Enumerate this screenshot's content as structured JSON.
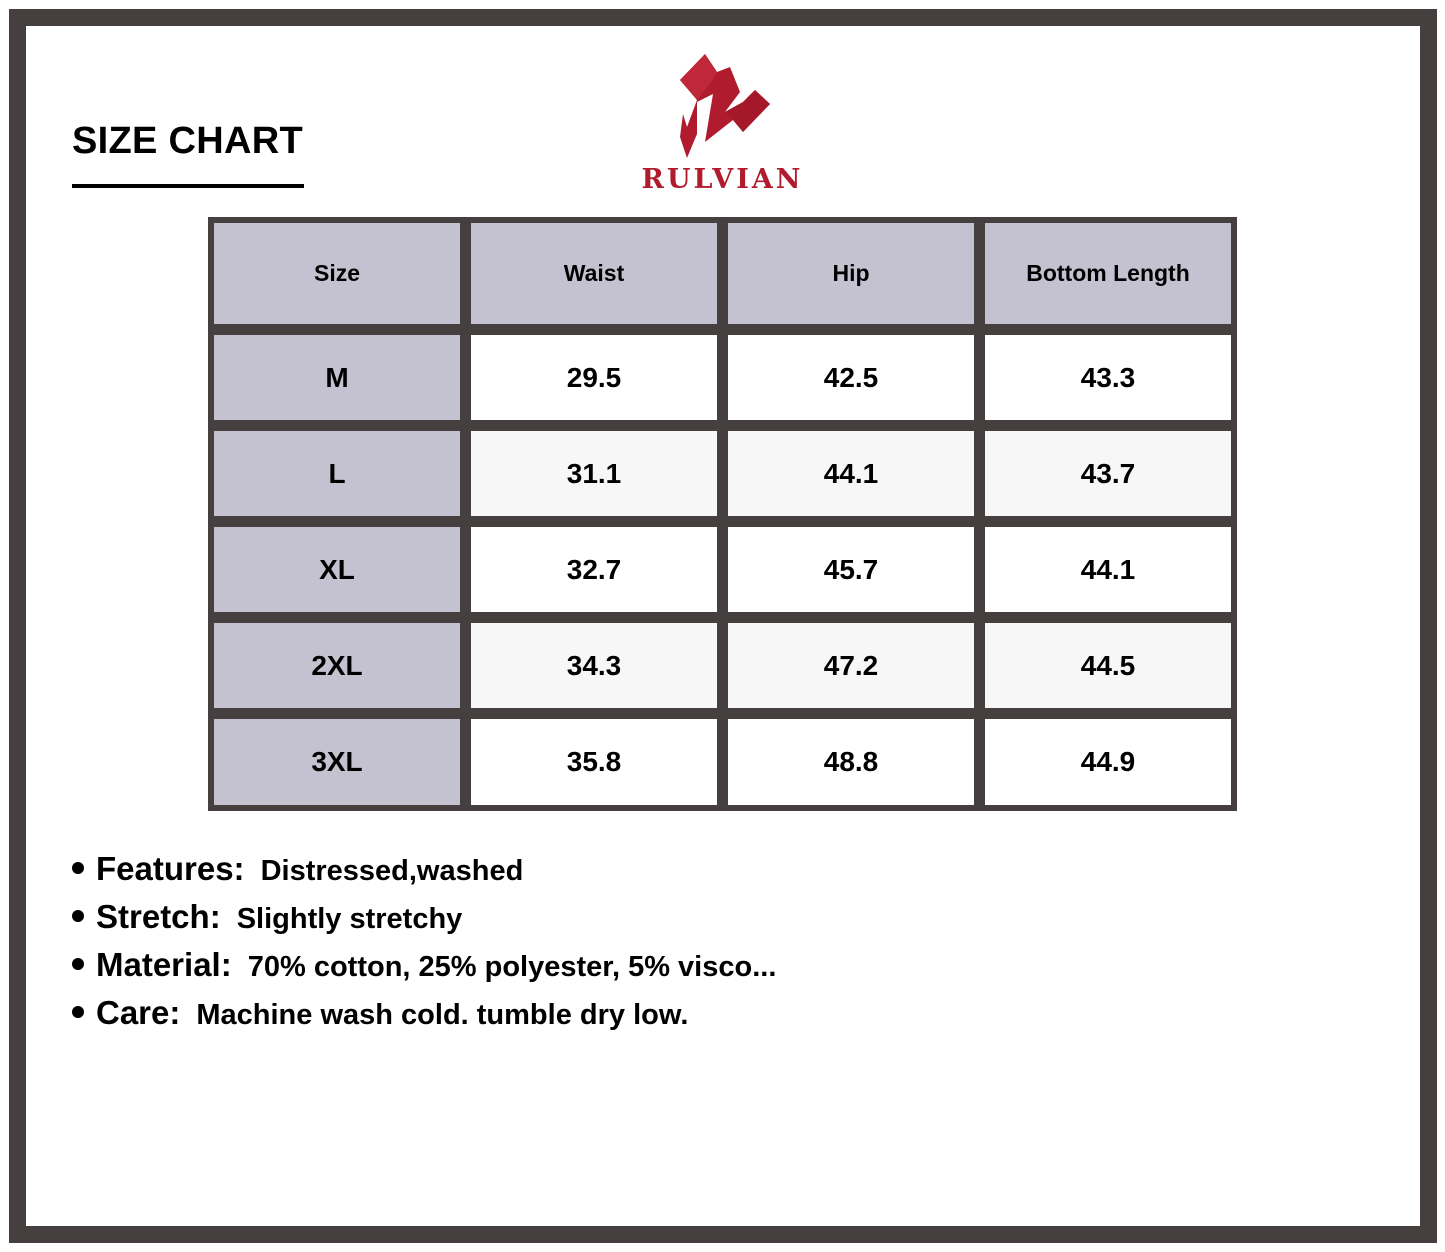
{
  "title": "SIZE CHART",
  "brand": {
    "name": "RULVIAN",
    "color": "#b01b2e"
  },
  "table": {
    "headers": [
      "Size",
      "Waist",
      "Hip",
      "Bottom Length"
    ],
    "rows": [
      [
        "M",
        "29.5",
        "42.5",
        "43.3"
      ],
      [
        "L",
        "31.1",
        "44.1",
        "43.7"
      ],
      [
        "XL",
        "32.7",
        "45.7",
        "44.1"
      ],
      [
        "2XL",
        "34.3",
        "47.2",
        "44.5"
      ],
      [
        "3XL",
        "35.8",
        "48.8",
        "44.9"
      ]
    ]
  },
  "notes": [
    {
      "label": "Features:",
      "value": "Distressed,washed"
    },
    {
      "label": "Stretch:",
      "value": "Slightly stretchy"
    },
    {
      "label": "Material:",
      "value": "70% cotton, 25% polyester, 5% visco..."
    },
    {
      "label": "Care:",
      "value": "Machine wash cold. tumble dry low."
    }
  ],
  "colors": {
    "frame": "#453f3f",
    "header_fill": "#c4c2d0"
  }
}
